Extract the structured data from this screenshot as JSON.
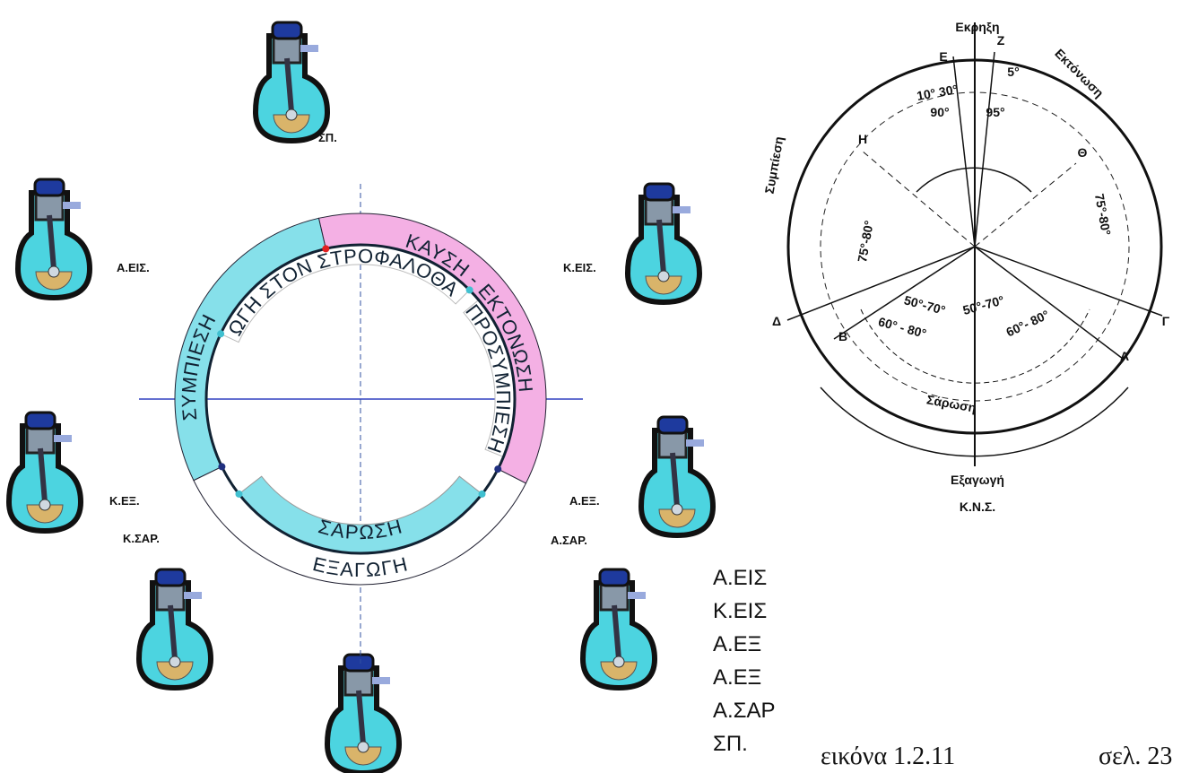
{
  "left_diagram": {
    "point_labels": [
      "ΣΠ.",
      "Α.ΕΙΣ.",
      "Κ.ΕΙΣ.",
      "Κ.ΕΞ.",
      "Α.ΕΞ.",
      "Κ.ΣΑΡ.",
      "Α.ΣΑΡ."
    ],
    "ring_labels": [
      "ΣΥΜΠΙΕΣΗ",
      "ΚΑΥΣΗ - ΕΚΤΟΝΩΣΗ",
      "ΕΙΣΑΓΩΓΗ ΣΤΟΝ ΣΤΡΟΦΑΛΟΘΑΛΑΜΟ",
      "ΠΡΟΣΥΜΠΙΕΣΗ",
      "ΣΑΡΩΣΗ",
      "ΕΞΑΓΩΓΗ"
    ]
  },
  "right_diagram": {
    "labels": [
      "Εκρηξη",
      "Ε",
      "Ζ",
      "Εκτόνωση",
      "Συμπίεση",
      "Η",
      "Θ",
      "10° 30°",
      "5°",
      "90°",
      "95°",
      "75°-80°",
      "75°-80°",
      "Δ",
      "Γ",
      "Β",
      "Α",
      "50°-70°",
      "50°-70°",
      "60° - 80°",
      "60°- 80°",
      "Σάρωση",
      "Εξαγωγή",
      "Κ.Ν.Σ."
    ]
  },
  "legend": [
    "Α.ΕΙΣ",
    "Κ.ΕΙΣ",
    "Α.ΕΞ",
    "Α.ΕΞ",
    "Α.ΣΑΡ",
    "ΣΠ."
  ],
  "caption": {
    "figure": "εικόνα 1.2.11",
    "page": "σελ. 23"
  }
}
